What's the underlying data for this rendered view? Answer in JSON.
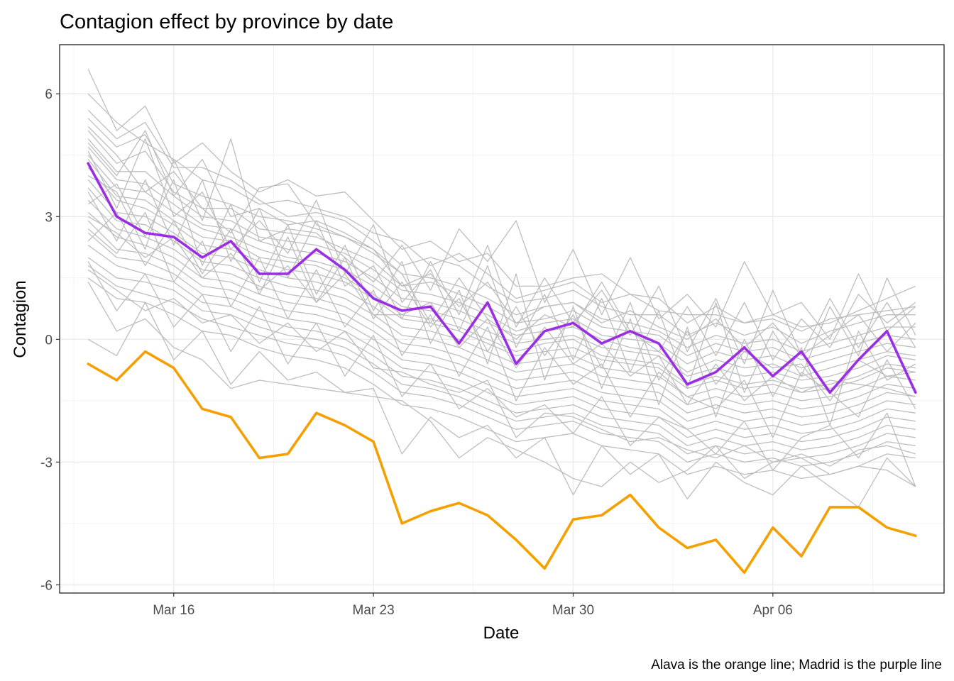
{
  "chart_data": {
    "type": "line",
    "title": "Contagion effect by province by date",
    "xlabel": "Date",
    "ylabel": "Contagion",
    "caption": "Alava is the orange line; Madrid is the purple line",
    "x": [
      "2020-03-13",
      "2020-03-14",
      "2020-03-15",
      "2020-03-16",
      "2020-03-17",
      "2020-03-18",
      "2020-03-19",
      "2020-03-20",
      "2020-03-21",
      "2020-03-22",
      "2020-03-23",
      "2020-03-24",
      "2020-03-25",
      "2020-03-26",
      "2020-03-27",
      "2020-03-28",
      "2020-03-29",
      "2020-03-30",
      "2020-03-31",
      "2020-04-01",
      "2020-04-02",
      "2020-04-03",
      "2020-04-04",
      "2020-04-05",
      "2020-04-06",
      "2020-04-07",
      "2020-04-08",
      "2020-04-09",
      "2020-04-10",
      "2020-04-11"
    ],
    "xlim": [
      "2020-03-12",
      "2020-04-12"
    ],
    "x_ticks": [
      {
        "date": "2020-03-16",
        "label": "Mar 16"
      },
      {
        "date": "2020-03-23",
        "label": "Mar 23"
      },
      {
        "date": "2020-03-30",
        "label": "Mar 30"
      },
      {
        "date": "2020-04-06",
        "label": "Apr 06"
      }
    ],
    "ylim": [
      -6.2,
      7.2
    ],
    "y_ticks": [
      {
        "value": 6,
        "label": "6"
      },
      {
        "value": 3,
        "label": "3"
      },
      {
        "value": 0,
        "label": "0"
      },
      {
        "value": -3,
        "label": "-3"
      },
      {
        "value": -6,
        "label": "-6"
      }
    ],
    "grid": true,
    "highlight_series": [
      {
        "color": "#f5a000",
        "values": [
          -0.6,
          -1.0,
          -0.3,
          -0.7,
          -1.7,
          -1.9,
          -2.9,
          -2.8,
          -1.8,
          -2.1,
          -2.5,
          -4.5,
          -4.2,
          -4.0,
          -4.3,
          -4.9,
          -5.6,
          -4.4,
          -4.3,
          -3.8,
          -4.6,
          -5.1,
          -4.9,
          -5.7,
          -4.6,
          -5.3,
          -4.1,
          -4.1,
          -4.6,
          -4.8
        ]
      },
      {
        "color": "#9b2de5",
        "values": [
          4.3,
          3.0,
          2.6,
          2.5,
          2.0,
          2.4,
          1.6,
          1.6,
          2.2,
          1.7,
          1.0,
          0.7,
          0.8,
          -0.1,
          0.9,
          -0.6,
          0.2,
          0.4,
          -0.1,
          0.2,
          -0.1,
          -1.1,
          -0.8,
          -0.2,
          -0.9,
          -0.3,
          -1.3,
          -0.5,
          0.2,
          -1.3
        ]
      }
    ],
    "background_series_color": "#bebebe",
    "background_series": [
      [
        6.6,
        5.1,
        5.7,
        4.3,
        4.8,
        4.1,
        3.6,
        3.9,
        3.5,
        3.6,
        2.9,
        2.2,
        2.4,
        1.9,
        2.1,
        1.3,
        1.3,
        1.5,
        1.6,
        1.1,
        1.0,
        0.4,
        0.8,
        0.4,
        0.6,
        0.3,
        0.4,
        0.7,
        1.0,
        1.3
      ],
      [
        6.0,
        5.3,
        4.8,
        4.4,
        3.9,
        3.7,
        3.3,
        3.4,
        3.2,
        3.0,
        2.6,
        2.4,
        1.8,
        2.1,
        1.6,
        1.0,
        1.2,
        1.4,
        0.9,
        1.1,
        0.7,
        0.6,
        0.6,
        0.4,
        0.5,
        0.2,
        0.5,
        0.6,
        0.7,
        0.8
      ],
      [
        5.6,
        4.9,
        5.3,
        4.2,
        4.2,
        3.9,
        3.4,
        3.0,
        3.1,
        2.9,
        2.4,
        1.8,
        2.0,
        1.8,
        1.3,
        0.9,
        1.0,
        1.2,
        0.8,
        0.6,
        0.6,
        0.1,
        0.4,
        0.1,
        0.3,
        -0.1,
        0.2,
        0.4,
        0.6,
        0.6
      ],
      [
        5.4,
        4.7,
        5.0,
        3.8,
        3.5,
        3.3,
        3.0,
        2.9,
        2.7,
        2.5,
        2.2,
        1.6,
        1.5,
        1.3,
        1.0,
        0.6,
        0.8,
        0.9,
        0.5,
        0.4,
        0.2,
        -0.2,
        0.1,
        -0.1,
        0.0,
        -0.3,
        -0.1,
        0.1,
        0.3,
        0.3
      ],
      [
        5.1,
        4.3,
        4.6,
        3.6,
        3.2,
        3.2,
        2.7,
        2.6,
        2.5,
        2.2,
        1.9,
        1.3,
        1.4,
        1.1,
        0.8,
        0.4,
        0.5,
        0.7,
        0.3,
        0.2,
        0.1,
        -0.4,
        -0.1,
        -0.3,
        -0.2,
        -0.5,
        -0.3,
        -0.1,
        0.1,
        0.0
      ],
      [
        4.9,
        4.1,
        4.1,
        3.5,
        3.0,
        2.9,
        2.5,
        2.4,
        2.3,
        2.1,
        1.7,
        1.2,
        1.1,
        0.9,
        0.6,
        0.2,
        0.4,
        0.5,
        0.1,
        0.0,
        -0.1,
        -0.6,
        -0.3,
        -0.5,
        -0.4,
        -0.7,
        -0.5,
        -0.3,
        -0.1,
        -0.2
      ],
      [
        4.7,
        3.9,
        3.8,
        3.3,
        2.8,
        2.7,
        2.4,
        2.2,
        2.1,
        1.9,
        1.5,
        1.0,
        0.9,
        0.7,
        0.4,
        0.1,
        0.2,
        0.3,
        0.0,
        -0.2,
        -0.3,
        -0.8,
        -0.5,
        -0.7,
        -0.6,
        -0.9,
        -0.7,
        -0.5,
        -0.3,
        -0.4
      ],
      [
        4.5,
        3.7,
        3.6,
        3.1,
        2.7,
        2.5,
        2.2,
        2.0,
        1.9,
        1.7,
        1.3,
        0.8,
        0.7,
        0.5,
        0.2,
        -0.1,
        0.0,
        0.1,
        -0.2,
        -0.3,
        -0.4,
        -0.9,
        -0.7,
        -0.9,
        -0.8,
        -1.0,
        -0.9,
        -0.7,
        -0.4,
        -0.5
      ],
      [
        4.4,
        3.5,
        3.4,
        2.9,
        2.5,
        2.4,
        2.0,
        1.9,
        1.8,
        1.5,
        1.1,
        0.6,
        0.5,
        0.3,
        0.0,
        -0.3,
        -0.1,
        0.0,
        -0.4,
        -0.5,
        -0.6,
        -1.1,
        -0.9,
        -1.1,
        -1.0,
        -1.2,
        -1.1,
        -0.9,
        -0.6,
        -0.7
      ],
      [
        4.2,
        3.4,
        3.2,
        2.8,
        2.3,
        2.2,
        1.9,
        1.7,
        1.6,
        1.4,
        1.0,
        0.5,
        0.4,
        0.2,
        -0.1,
        -0.4,
        -0.3,
        -0.2,
        -0.5,
        -0.6,
        -0.7,
        -1.2,
        -1.0,
        -1.2,
        -1.1,
        -1.3,
        -1.2,
        -1.0,
        -0.7,
        -0.8
      ],
      [
        3.9,
        3.1,
        3.0,
        2.6,
        2.1,
        2.0,
        1.7,
        1.5,
        1.4,
        1.2,
        0.8,
        0.3,
        0.2,
        0.0,
        -0.3,
        -0.6,
        -0.5,
        -0.4,
        -0.7,
        -0.8,
        -0.9,
        -1.4,
        -1.2,
        -1.4,
        -1.3,
        -1.5,
        -1.4,
        -1.2,
        -0.9,
        -1.0
      ],
      [
        3.7,
        2.9,
        2.8,
        2.4,
        1.9,
        1.8,
        1.5,
        1.3,
        1.2,
        1.0,
        0.6,
        0.1,
        0.0,
        -0.2,
        -0.5,
        -0.8,
        -0.7,
        -0.6,
        -0.9,
        -1.0,
        -1.1,
        -1.6,
        -1.4,
        -1.6,
        -1.5,
        -1.7,
        -1.6,
        -1.4,
        -1.1,
        -1.2
      ],
      [
        3.4,
        2.7,
        2.5,
        2.2,
        1.7,
        1.6,
        1.3,
        1.1,
        1.0,
        0.8,
        0.4,
        -0.1,
        -0.2,
        -0.4,
        -0.7,
        -1.0,
        -0.9,
        -0.8,
        -1.1,
        -1.2,
        -1.3,
        -1.8,
        -1.6,
        -1.8,
        -1.7,
        -1.9,
        -1.8,
        -1.6,
        -1.3,
        -1.4
      ],
      [
        3.1,
        2.5,
        2.3,
        2.0,
        1.5,
        1.4,
        1.1,
        0.9,
        0.8,
        0.6,
        0.2,
        -0.3,
        -0.4,
        -0.6,
        -0.9,
        -1.2,
        -1.1,
        -1.0,
        -1.3,
        -1.4,
        -1.5,
        -2.0,
        -1.8,
        -2.0,
        -1.9,
        -2.1,
        -2.0,
        -1.8,
        -1.5,
        -1.6
      ],
      [
        2.9,
        2.2,
        2.1,
        1.8,
        1.3,
        1.2,
        0.9,
        0.7,
        0.6,
        0.4,
        0.0,
        -0.5,
        -0.6,
        -0.8,
        -1.1,
        -1.4,
        -1.3,
        -1.2,
        -1.5,
        -1.6,
        -1.7,
        -2.2,
        -2.0,
        -2.2,
        -2.1,
        -2.3,
        -2.2,
        -2.0,
        -1.7,
        -1.8
      ],
      [
        2.6,
        2.0,
        1.9,
        1.6,
        1.1,
        1.0,
        0.7,
        0.5,
        0.4,
        0.2,
        -0.2,
        -0.7,
        -0.8,
        -1.0,
        -1.3,
        -1.6,
        -1.5,
        -1.4,
        -1.7,
        -1.8,
        -1.9,
        -2.4,
        -2.2,
        -2.4,
        -2.3,
        -2.5,
        -2.4,
        -2.2,
        -1.9,
        -2.0
      ],
      [
        2.3,
        1.8,
        1.6,
        1.4,
        0.9,
        0.8,
        0.5,
        0.3,
        0.2,
        0.0,
        -0.4,
        -0.9,
        -1.0,
        -1.2,
        -1.5,
        -1.8,
        -1.7,
        -1.6,
        -1.9,
        -2.0,
        -2.1,
        -2.6,
        -2.4,
        -2.6,
        -2.5,
        -2.7,
        -2.6,
        -2.4,
        -2.1,
        -2.2
      ],
      [
        2.0,
        1.5,
        1.4,
        1.2,
        0.7,
        0.6,
        0.3,
        0.1,
        0.0,
        -0.2,
        -0.6,
        -1.1,
        -1.2,
        -1.4,
        -1.7,
        -2.0,
        -1.9,
        -1.8,
        -2.1,
        -2.2,
        -2.3,
        -2.8,
        -2.6,
        -2.8,
        -2.7,
        -2.9,
        -2.8,
        -2.6,
        -2.3,
        -2.4
      ],
      [
        1.8,
        1.3,
        1.1,
        0.9,
        0.5,
        0.3,
        0.1,
        -0.1,
        -0.2,
        -0.4,
        -0.8,
        -1.3,
        -1.4,
        -1.6,
        -1.9,
        -2.2,
        -2.1,
        -2.0,
        -2.3,
        -2.4,
        -2.5,
        -3.0,
        -2.8,
        -3.0,
        -2.9,
        -3.1,
        -3.0,
        -2.8,
        -2.5,
        -2.6
      ],
      [
        1.5,
        1.0,
        0.9,
        0.6,
        0.2,
        0.1,
        -0.2,
        -0.4,
        -0.5,
        -0.7,
        -1.1,
        -1.6,
        -1.7,
        -1.9,
        -2.2,
        -2.5,
        -2.4,
        -2.3,
        -2.6,
        -2.7,
        -2.8,
        -3.3,
        -3.1,
        -3.3,
        -3.2,
        -3.4,
        -3.3,
        -3.1,
        -2.8,
        -2.9
      ],
      [
        5.2,
        4.5,
        3.6,
        4.1,
        3.2,
        2.6,
        3.7,
        3.8,
        2.8,
        2.5,
        2.1,
        1.6,
        0.4,
        1.5,
        0.5,
        0.0,
        0.6,
        0.3,
        1.4,
        0.2,
        -0.3,
        0.8,
        -0.4,
        0.9,
        -0.5,
        0.5,
        -0.2,
        1.1,
        0.4,
        0.9
      ],
      [
        4.6,
        3.2,
        4.9,
        3.0,
        3.6,
        2.2,
        2.9,
        2.1,
        3.4,
        1.6,
        2.8,
        0.9,
        1.7,
        0.2,
        1.8,
        -0.2,
        1.1,
        -0.5,
        1.0,
        -0.8,
        0.7,
        -1.2,
        0.9,
        -1.3,
        0.2,
        -0.9,
        0.8,
        -0.4,
        1.5,
        0.1
      ],
      [
        3.3,
        3.8,
        2.5,
        3.9,
        1.8,
        3.3,
        1.4,
        2.8,
        1.1,
        2.3,
        0.7,
        1.9,
        -0.1,
        1.2,
        -0.6,
        1.6,
        -1.0,
        0.8,
        -1.2,
        0.5,
        -1.6,
        0.3,
        -1.9,
        0.0,
        -1.4,
        -0.2,
        -2.1,
        0.2,
        -1.0,
        -0.6
      ],
      [
        2.7,
        2.1,
        3.1,
        1.4,
        2.4,
        0.8,
        2.0,
        0.5,
        1.7,
        0.3,
        1.2,
        -0.4,
        0.6,
        -0.9,
        0.3,
        -1.5,
        -0.2,
        -1.1,
        -0.6,
        -1.9,
        -0.8,
        -1.4,
        -1.7,
        -1.0,
        -2.4,
        -0.8,
        -1.3,
        -1.9,
        -0.5,
        -1.7
      ],
      [
        1.9,
        0.7,
        1.6,
        0.3,
        1.1,
        -0.3,
        0.8,
        -0.6,
        0.4,
        -0.9,
        0.1,
        -1.4,
        -0.6,
        -1.7,
        -1.2,
        -1.9,
        -1.6,
        -2.3,
        -1.4,
        -2.6,
        -1.9,
        -2.2,
        -2.8,
        -2.0,
        -3.2,
        -2.4,
        -2.1,
        -2.9,
        -1.8,
        -3.6
      ],
      [
        0.0,
        -0.4,
        0.9,
        -0.5,
        0.2,
        -1.1,
        -0.3,
        -1.0,
        -0.8,
        -1.3,
        -1.2,
        -2.8,
        -1.9,
        -2.4,
        -2.1,
        -2.9,
        -2.4,
        -3.8,
        -2.6,
        -3.3,
        -2.8,
        -3.9,
        -3.0,
        -3.5,
        -3.8,
        -3.1,
        -3.6,
        -4.1,
        -2.9,
        -3.6
      ],
      [
        1.4,
        0.2,
        0.5,
        -0.2,
        -0.5,
        -1.2,
        -1.0,
        -1.1,
        -1.2,
        -1.3,
        -1.4,
        -1.5,
        -2.0,
        -2.9,
        -2.4,
        -2.7,
        -3.0,
        -3.4,
        -3.6,
        -3.0,
        -3.5,
        -3.2,
        -2.6,
        -3.4,
        -3.0,
        -2.9,
        -3.3,
        -3.1,
        -3.2,
        -3.6
      ],
      [
        4.0,
        3.6,
        2.2,
        4.4,
        2.9,
        4.9,
        2.4,
        2.7,
        2.6,
        2.0,
        1.4,
        2.3,
        1.2,
        2.7,
        1.9,
        2.9,
        0.9,
        2.2,
        0.6,
        2.0,
        0.5,
        1.1,
        0.3,
        1.9,
        0.6,
        0.9,
        0.0,
        1.6,
        0.2,
        0.8
      ],
      [
        3.6,
        2.4,
        3.9,
        2.3,
        3.9,
        1.9,
        3.2,
        1.5,
        2.9,
        1.3,
        1.8,
        0.5,
        1.9,
        0.6,
        2.3,
        0.3,
        1.5,
        0.4,
        1.2,
        0.1,
        1.3,
        -0.3,
        1.0,
        -0.6,
        1.2,
        -0.4,
        1.0,
        -0.2,
        0.9,
        -0.2
      ],
      [
        2.4,
        3.1,
        1.8,
        2.9,
        1.6,
        2.7,
        1.1,
        2.5,
        0.9,
        2.0,
        0.5,
        1.4,
        0.3,
        1.0,
        -0.3,
        0.8,
        -0.4,
        0.6,
        -0.7,
        0.9,
        -1.0,
        0.2,
        -1.1,
        -0.3,
        -0.7,
        -0.6,
        -1.5,
        -0.5,
        -0.9,
        -0.8
      ],
      [
        4.8,
        4.0,
        5.1,
        3.5,
        4.4,
        3.0,
        3.2,
        2.8,
        2.9,
        2.6,
        2.2,
        1.3,
        1.6,
        0.8,
        1.4,
        0.4,
        0.8,
        0.9,
        0.4,
        0.7,
        0.3,
        0.0,
        0.5,
        -0.2,
        0.4,
        -0.4,
        0.1,
        0.6,
        -0.3,
        0.4
      ],
      [
        3.0,
        2.6,
        2.0,
        2.5,
        1.5,
        2.1,
        1.2,
        1.8,
        0.9,
        1.6,
        0.6,
        0.6,
        0.9,
        -0.2,
        0.5,
        -0.7,
        0.3,
        -0.6,
        -0.1,
        -0.9,
        -0.4,
        -1.6,
        -0.6,
        -1.5,
        -0.9,
        -1.3,
        -1.0,
        -1.1,
        -1.2,
        -1.4
      ],
      [
        1.7,
        1.2,
        0.7,
        1.0,
        0.4,
        0.6,
        -0.1,
        0.4,
        -0.3,
        0.2,
        -0.7,
        -0.8,
        -1.1,
        -1.3,
        -1.0,
        -2.4,
        -1.8,
        -1.9,
        -2.2,
        -2.5,
        -2.4,
        -2.7,
        -2.9,
        -2.6,
        -3.0,
        -2.8,
        -3.1,
        -2.7,
        -2.6,
        -2.8
      ]
    ]
  }
}
